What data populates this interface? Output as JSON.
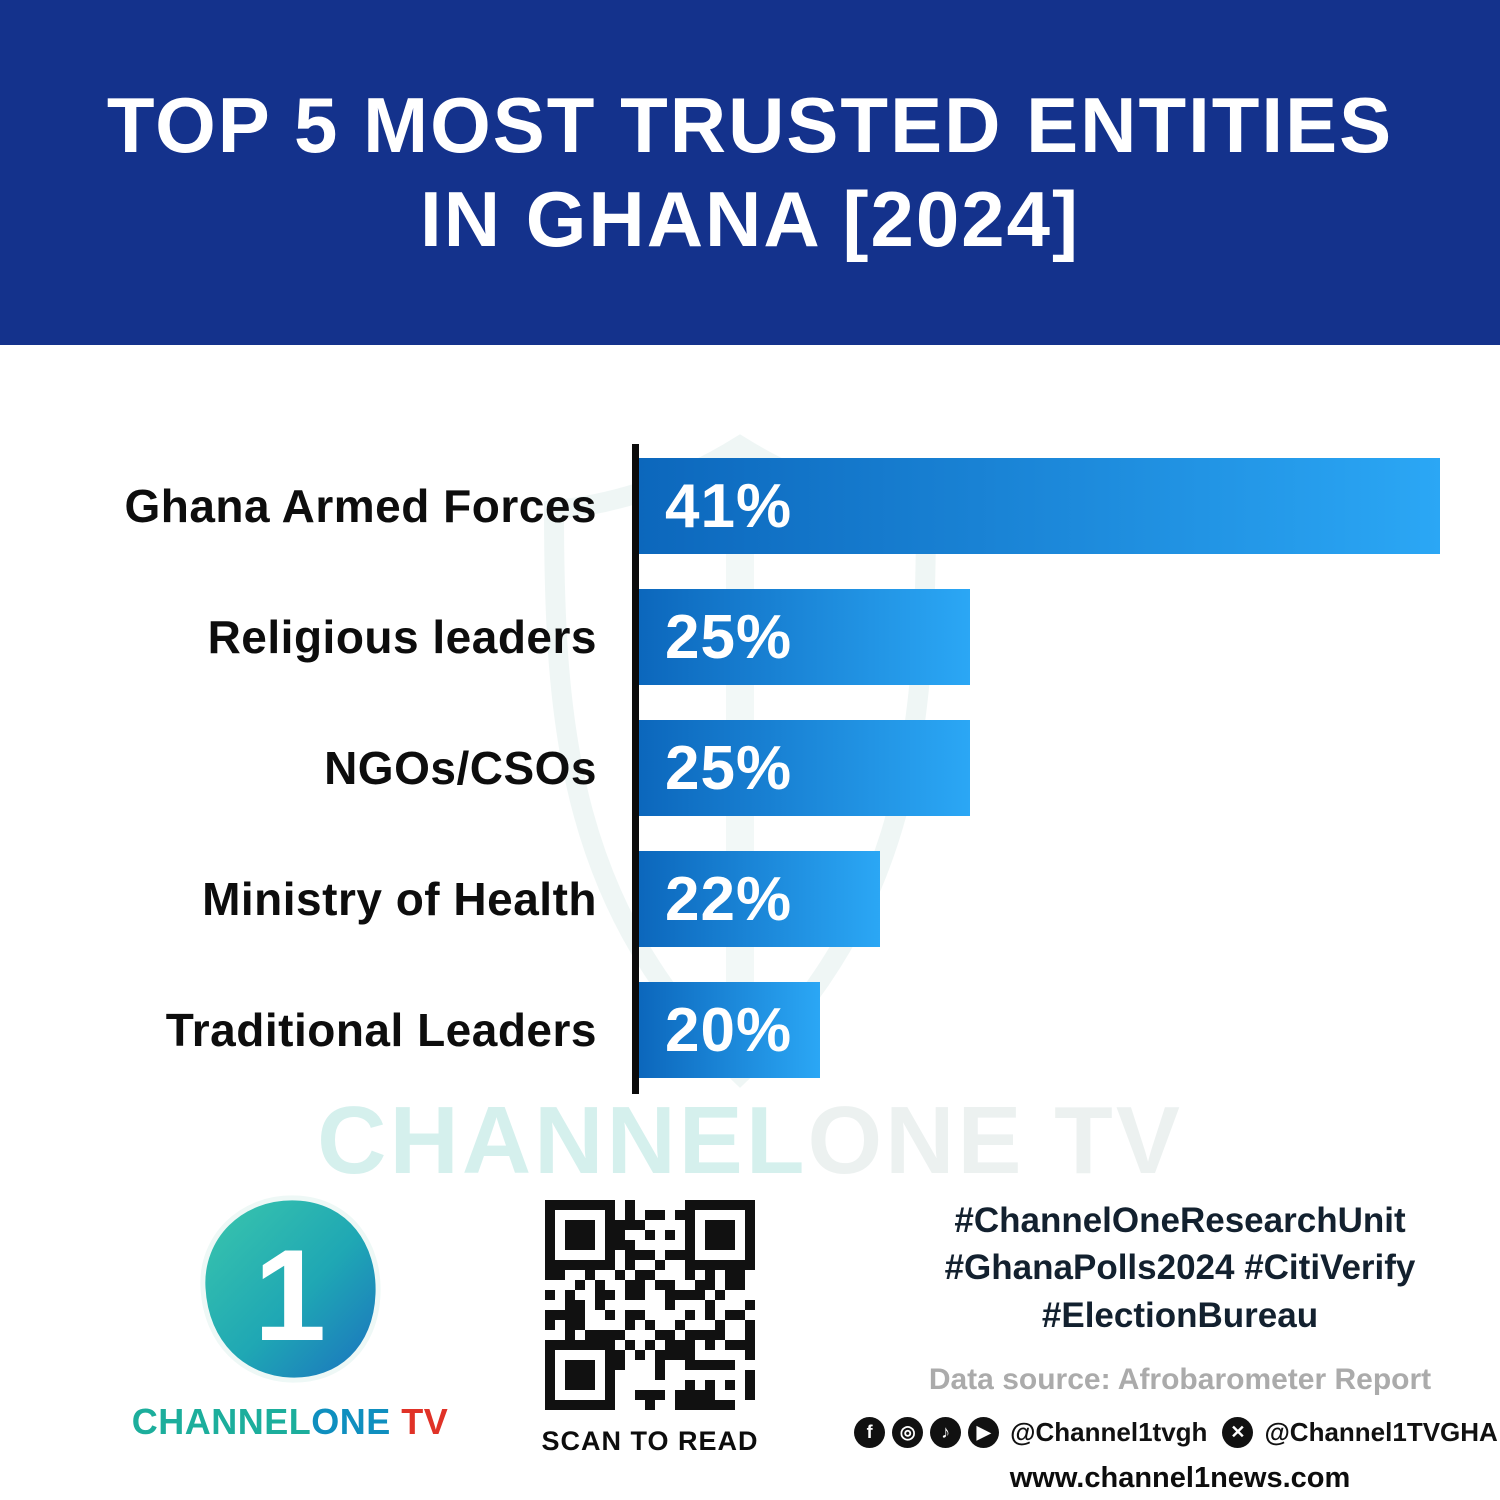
{
  "header": {
    "title_line1": "TOP 5 MOST TRUSTED ENTITIES",
    "title_line2": "IN GHANA [2024]"
  },
  "chart_data": {
    "type": "bar",
    "orientation": "horizontal",
    "title": "Top 5 Most Trusted Entities in Ghana [2024]",
    "categories": [
      "Ghana Armed Forces",
      "Religious leaders",
      "NGOs/CSOs",
      "Ministry of Health",
      "Traditional Leaders"
    ],
    "values": [
      41,
      25,
      25,
      22,
      20
    ],
    "value_labels": [
      "41%",
      "25%",
      "25%",
      "22%",
      "20%"
    ],
    "bar_width_pct": [
      93,
      38.5,
      38.5,
      28,
      21
    ],
    "xlabel": "",
    "ylabel": "",
    "xlim": [
      0,
      44
    ],
    "grid": false,
    "legend_position": "none",
    "bar_color_start": "#0C67BC",
    "bar_color_end": "#2BA7F5"
  },
  "watermark": {
    "teal_text": "CHANNEL",
    "gray_text": "ONE TV"
  },
  "footer": {
    "brand": {
      "numeral": "1",
      "channel": "CHANNEL",
      "one": "ONE",
      "tv": " TV"
    },
    "qr_caption": "SCAN TO READ",
    "hashtags": [
      "#ChannelOneResearchUnit",
      "#GhanaPolls2024 #CitiVerify",
      "#ElectionBureau"
    ],
    "data_source": "Data source: Afrobarometer Report",
    "social": {
      "icons": [
        {
          "name": "facebook-icon",
          "glyph": "f"
        },
        {
          "name": "instagram-icon",
          "glyph": "◎"
        },
        {
          "name": "tiktok-icon",
          "glyph": "♪"
        },
        {
          "name": "youtube-icon",
          "glyph": "▶"
        }
      ],
      "handle_main": "@Channel1tvgh",
      "x_glyph": "✕",
      "handle_x": "@Channel1TVGHA"
    },
    "website": "www.channel1news.com"
  },
  "colors": {
    "header_bg": "#14328C",
    "bar_gradient_start": "#0C67BC",
    "bar_gradient_end": "#2BA7F5",
    "brand_teal": "#1CAE9C",
    "brand_blue": "#0F8FBF",
    "brand_red": "#E03227",
    "hashtag_color": "#13212F",
    "muted_gray": "#ABABAB"
  }
}
